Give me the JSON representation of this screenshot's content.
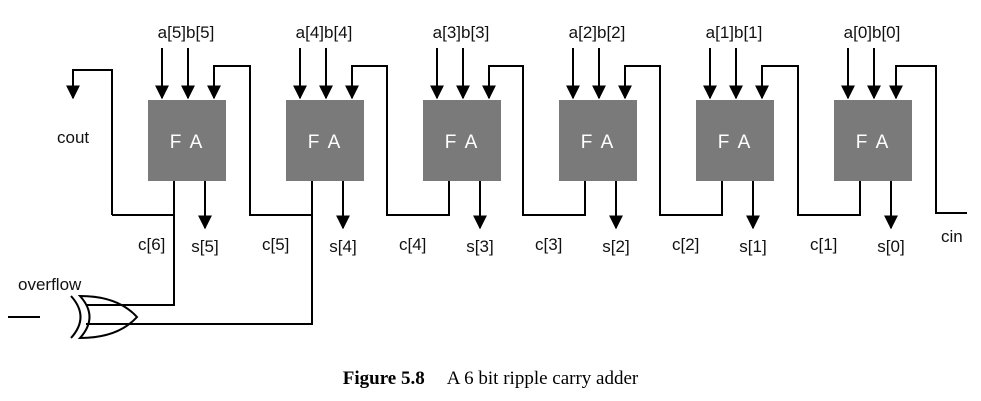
{
  "diagram": {
    "adders": [
      {
        "label": "F A",
        "inputs": "a[5]b[5]",
        "sum": "s[5]",
        "carry_out": "c[6]"
      },
      {
        "label": "F A",
        "inputs": "a[4]b[4]",
        "sum": "s[4]",
        "carry_out": "c[5]"
      },
      {
        "label": "F A",
        "inputs": "a[3]b[3]",
        "sum": "s[3]",
        "carry_out": "c[4]"
      },
      {
        "label": "F A",
        "inputs": "a[2]b[2]",
        "sum": "s[2]",
        "carry_out": "c[3]"
      },
      {
        "label": "F A",
        "inputs": "a[1]b[1]",
        "sum": "s[1]",
        "carry_out": "c[2]"
      },
      {
        "label": "F A",
        "inputs": "a[0]b[0]",
        "sum": "s[0]",
        "carry_out": "c[1]"
      }
    ],
    "cout_label": "cout",
    "cin_label": "cin",
    "overflow_label": "overflow",
    "block_color": "#7a7a7a"
  },
  "caption": {
    "figure": "Figure 5.8",
    "text": "A 6 bit ripple carry adder"
  }
}
